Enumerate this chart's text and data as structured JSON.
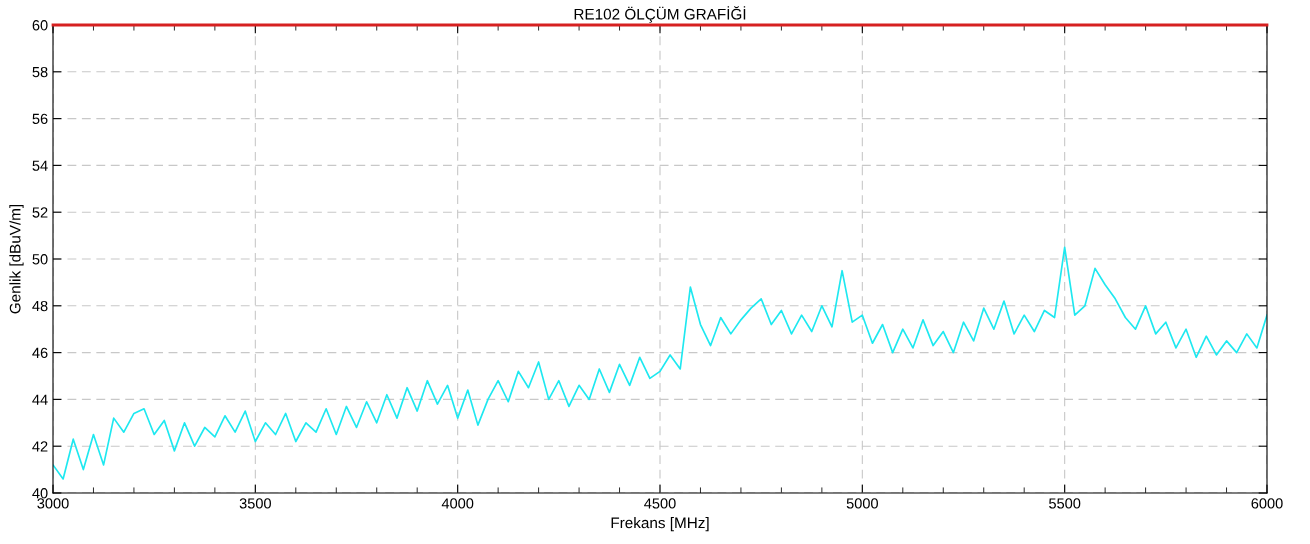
{
  "chart_data": {
    "type": "line",
    "title": "RE102 ÖLÇÜM GRAFİĞİ",
    "xlabel": "Frekans [MHz]",
    "ylabel": "Genlik [dBuV/m]",
    "x": [
      3000,
      3025,
      3050,
      3075,
      3100,
      3125,
      3150,
      3175,
      3200,
      3225,
      3250,
      3275,
      3300,
      3325,
      3350,
      3375,
      3400,
      3425,
      3450,
      3475,
      3500,
      3525,
      3550,
      3575,
      3600,
      3625,
      3650,
      3675,
      3700,
      3725,
      3750,
      3775,
      3800,
      3825,
      3850,
      3875,
      3900,
      3925,
      3950,
      3975,
      4000,
      4025,
      4050,
      4075,
      4100,
      4125,
      4150,
      4175,
      4200,
      4225,
      4250,
      4275,
      4300,
      4325,
      4350,
      4375,
      4400,
      4425,
      4450,
      4475,
      4500,
      4525,
      4550,
      4575,
      4600,
      4625,
      4650,
      4675,
      4700,
      4725,
      4750,
      4775,
      4800,
      4825,
      4850,
      4875,
      4900,
      4925,
      4950,
      4975,
      5000,
      5025,
      5050,
      5075,
      5100,
      5125,
      5150,
      5175,
      5200,
      5225,
      5250,
      5275,
      5300,
      5325,
      5350,
      5375,
      5400,
      5425,
      5450,
      5475,
      5500,
      5525,
      5550,
      5575,
      5600,
      5625,
      5650,
      5675,
      5700,
      5725,
      5750,
      5775,
      5800,
      5825,
      5850,
      5875,
      5900,
      5925,
      5950,
      5975,
      6000
    ],
    "series": [
      {
        "color": "#1ee8f0",
        "values": [
          41.2,
          40.6,
          42.3,
          41.0,
          42.5,
          41.2,
          43.2,
          42.6,
          43.4,
          43.6,
          42.5,
          43.1,
          41.8,
          43.0,
          42.0,
          42.8,
          42.4,
          43.3,
          42.6,
          43.5,
          42.2,
          43.0,
          42.5,
          43.4,
          42.2,
          43.0,
          42.6,
          43.6,
          42.5,
          43.7,
          42.8,
          43.9,
          43.0,
          44.2,
          43.2,
          44.5,
          43.5,
          44.8,
          43.8,
          44.6,
          43.2,
          44.4,
          42.9,
          44.0,
          44.8,
          43.9,
          45.2,
          44.5,
          45.6,
          44.0,
          44.8,
          43.7,
          44.6,
          44.0,
          45.3,
          44.3,
          45.5,
          44.6,
          45.8,
          44.9,
          45.2,
          45.9,
          45.3,
          48.8,
          47.2,
          46.3,
          47.5,
          46.8,
          47.4,
          47.9,
          48.3,
          47.2,
          47.8,
          46.8,
          47.6,
          46.9,
          48.0,
          47.1,
          49.5,
          47.3,
          47.6,
          46.4,
          47.2,
          46.0,
          47.0,
          46.2,
          47.4,
          46.3,
          46.9,
          46.0,
          47.3,
          46.5,
          47.9,
          47.0,
          48.2,
          46.8,
          47.6,
          46.9,
          47.8,
          47.5,
          50.5,
          47.6,
          48.0,
          49.6,
          48.9,
          48.3,
          47.5,
          47.0,
          48.0,
          46.8,
          47.3,
          46.2,
          47.0,
          45.8,
          46.7,
          45.9,
          46.5,
          46.0,
          46.8,
          46.2,
          47.6
        ]
      }
    ],
    "xlim": [
      3000,
      6000
    ],
    "xticks": [
      3000,
      {
        "value": 3100,
        "label": null
      },
      {
        "value": 3200,
        "label": null
      },
      {
        "value": 3300,
        "label": null
      },
      {
        "value": 3400,
        "label": null
      },
      3500,
      {
        "value": 3600,
        "label": null
      },
      {
        "value": 3700,
        "label": null
      },
      {
        "value": 3800,
        "label": null
      },
      {
        "value": 3900,
        "label": null
      },
      4000,
      {
        "value": 4100,
        "label": null
      },
      {
        "value": 4200,
        "label": null
      },
      {
        "value": 4300,
        "label": null
      },
      {
        "value": 4400,
        "label": null
      },
      4500,
      {
        "value": 4600,
        "label": null
      },
      {
        "value": 4700,
        "label": null
      },
      {
        "value": 4800,
        "label": null
      },
      {
        "value": 4900,
        "label": null
      },
      5000,
      {
        "value": 5100,
        "label": null
      },
      {
        "value": 5200,
        "label": null
      },
      {
        "value": 5300,
        "label": null
      },
      {
        "value": 5400,
        "label": null
      },
      5500,
      {
        "value": 5600,
        "label": null
      },
      {
        "value": 5700,
        "label": null
      },
      {
        "value": 5800,
        "label": null
      },
      {
        "value": 5900,
        "label": null
      },
      6000
    ],
    "ylim": [
      40,
      60
    ],
    "yticks": [
      40,
      42,
      44,
      46,
      48,
      50,
      52,
      54,
      56,
      58,
      60
    ],
    "ref_lines": [
      {
        "axis": "y",
        "value": 60,
        "label": null,
        "color": "#d62020",
        "line_style": "solid"
      }
    ],
    "grid": true,
    "line_style": "solid",
    "marker": "none"
  }
}
